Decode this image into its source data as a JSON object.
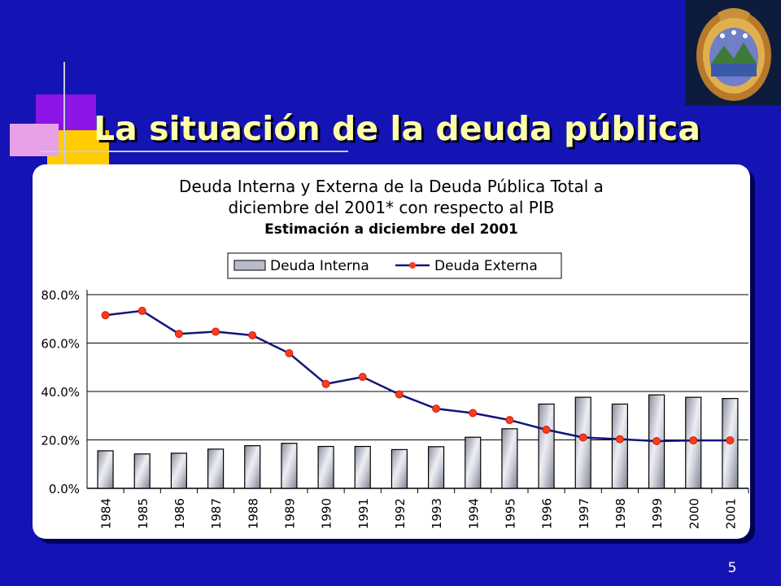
{
  "slide": {
    "title": "La situación de la deuda pública",
    "page_number": "5",
    "colors": {
      "background": "#1414b4",
      "title": "#ffffa8",
      "bar": "#b8bcc8",
      "line": "#141478",
      "marker": "#ff3a1a"
    }
  },
  "logo": {
    "icon": "costa-rica-coat-of-arms-seal"
  },
  "chart_data": {
    "type": "bar",
    "title_lines": [
      "Deuda Interna y Externa de la Deuda Pública Total a",
      "diciembre del 2001* con respecto al PIB"
    ],
    "subtitle": "Estimación a diciembre del 2001",
    "legend_position": "top",
    "categories": [
      "1984",
      "1985",
      "1986",
      "1987",
      "1988",
      "1989",
      "1990",
      "1991",
      "1992",
      "1993",
      "1994",
      "1995",
      "1996",
      "1997",
      "1998",
      "1999",
      "2000",
      "2001"
    ],
    "series": [
      {
        "name": "Deuda Interna",
        "type": "bar",
        "values": [
          15.5,
          14.2,
          14.5,
          16.2,
          17.6,
          18.6,
          17.3,
          17.3,
          16.0,
          17.2,
          21.1,
          24.6,
          34.8,
          37.6,
          34.8,
          38.6,
          37.6,
          37.1
        ]
      },
      {
        "name": "Deuda Externa",
        "type": "line",
        "values": [
          71.5,
          73.3,
          63.8,
          64.7,
          63.2,
          55.8,
          43.1,
          46.0,
          38.8,
          32.9,
          31.1,
          28.2,
          24.2,
          21.0,
          20.3,
          19.5,
          19.8,
          19.8
        ]
      }
    ],
    "y_ticks": [
      "0.0%",
      "20.0%",
      "40.0%",
      "60.0%",
      "80.0%"
    ],
    "ylim": [
      0,
      80
    ],
    "grid": true
  }
}
